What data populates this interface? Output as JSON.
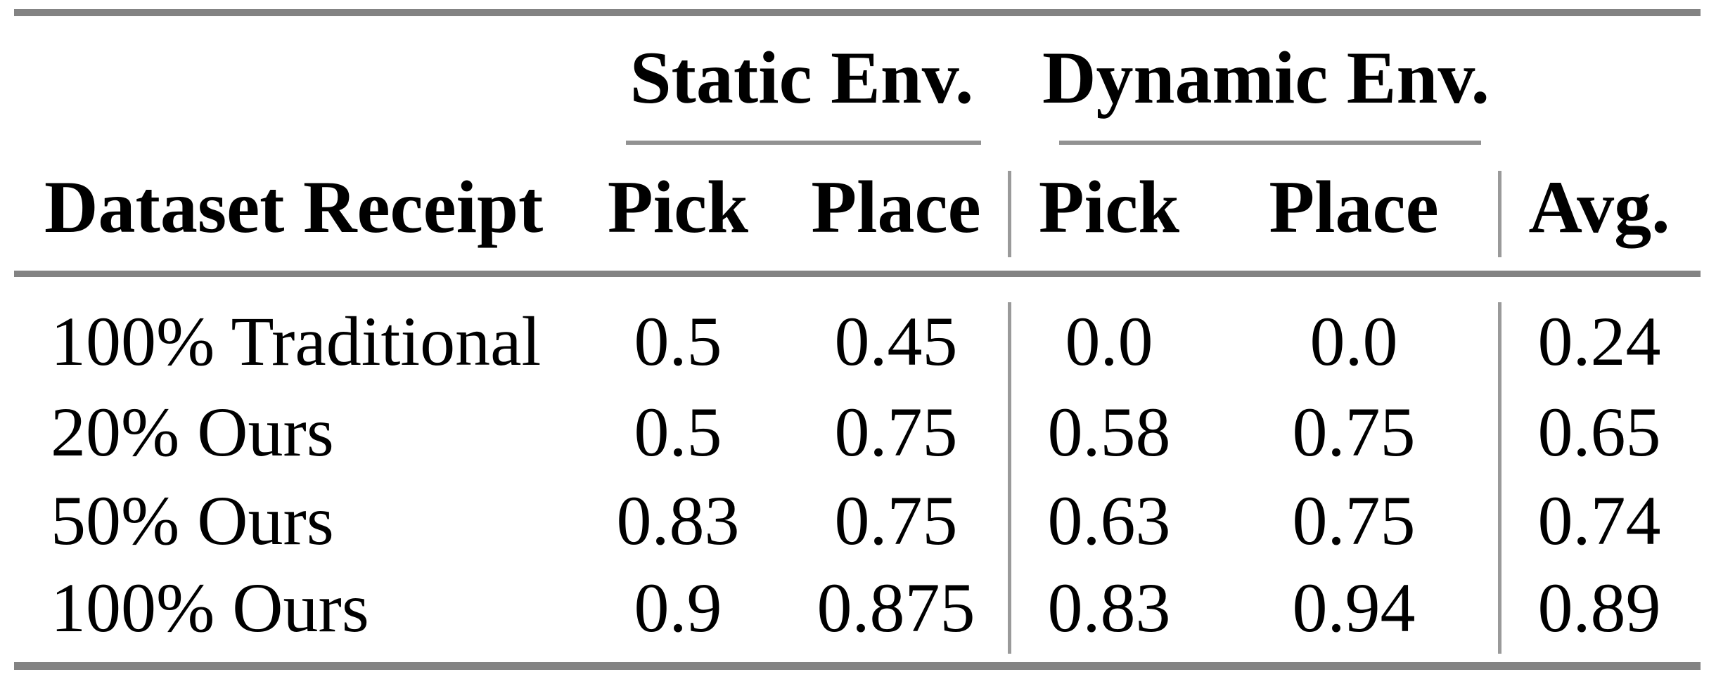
{
  "colors": {
    "background": "#ffffff",
    "text": "#000000",
    "rule_thick": "#838383",
    "rule_thin": "#929292",
    "rule_vertical": "#9a9a9a"
  },
  "table": {
    "group_headers": {
      "static": "Static Env.",
      "dynamic": "Dynamic Env."
    },
    "column_headers": {
      "dataset": "Dataset Receipt",
      "static_pick": "Pick",
      "static_place": "Place",
      "dynamic_pick": "Pick",
      "dynamic_place": "Place",
      "avg": "Avg."
    },
    "rows": [
      {
        "label": "100% Traditional",
        "static_pick": "0.5",
        "static_place": "0.45",
        "dynamic_pick": "0.0",
        "dynamic_place": "0.0",
        "avg": "0.24"
      },
      {
        "label": "20% Ours",
        "static_pick": "0.5",
        "static_place": "0.75",
        "dynamic_pick": "0.58",
        "dynamic_place": "0.75",
        "avg": "0.65"
      },
      {
        "label": "50% Ours",
        "static_pick": "0.83",
        "static_place": "0.75",
        "dynamic_pick": "0.63",
        "dynamic_place": "0.75",
        "avg": "0.74"
      },
      {
        "label": "100% Ours",
        "static_pick": "0.9",
        "static_place": "0.875",
        "dynamic_pick": "0.83",
        "dynamic_place": "0.94",
        "avg": "0.89"
      }
    ]
  },
  "chart_data": {
    "type": "table",
    "columns": [
      "Dataset Receipt",
      "Static Env. Pick",
      "Static Env. Place",
      "Dynamic Env. Pick",
      "Dynamic Env. Place",
      "Avg."
    ],
    "rows": [
      [
        "100% Traditional",
        0.5,
        0.45,
        0.0,
        0.0,
        0.24
      ],
      [
        "20% Ours",
        0.5,
        0.75,
        0.58,
        0.75,
        0.65
      ],
      [
        "50% Ours",
        0.83,
        0.75,
        0.63,
        0.75,
        0.74
      ],
      [
        "100% Ours",
        0.9,
        0.875,
        0.83,
        0.94,
        0.89
      ]
    ]
  }
}
